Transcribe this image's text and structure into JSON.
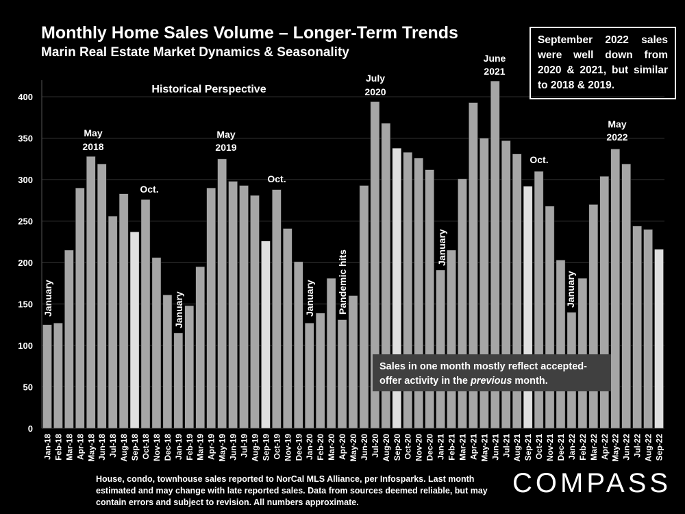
{
  "title": "Monthly Home Sales Volume – Longer-Term Trends",
  "subtitle": "Marin Real Estate Market Dynamics & Seasonality",
  "callout": "September 2022 sales were well down from 2020 & 2021, but similar to 2018 & 2019.",
  "footnote": "House, condo, townhouse sales reported to NorCal MLS Alliance, per Infosparks. Last month estimated and may change with late reported sales. Data from sources deemed reliable, but may contain errors and subject to revision. All numbers approximate.",
  "logo": "COMPASS",
  "colors": {
    "background": "#000000",
    "bar": "#a6a6a6",
    "highlight_bar": "#e0e0e0",
    "text": "#ffffff"
  },
  "chart_data": {
    "type": "bar",
    "ylim": [
      0,
      420
    ],
    "yticks": [
      0,
      50,
      100,
      150,
      200,
      250,
      300,
      350,
      400
    ],
    "grid": true,
    "categories": [
      "Jan-18",
      "Feb-18",
      "Mar-18",
      "Apr-18",
      "May-18",
      "Jun-18",
      "Jul-18",
      "Aug-18",
      "Sep-18",
      "Oct-18",
      "Nov-18",
      "Dec-18",
      "Jan-19",
      "Feb-19",
      "Mar-19",
      "Apr-19",
      "May-19",
      "Jun-19",
      "Jul-19",
      "Aug-19",
      "Sep-19",
      "Oct-19",
      "Nov-19",
      "Dec-19",
      "Jan-20",
      "Feb-20",
      "Mar-20",
      "Apr-20",
      "May-20",
      "Jun-20",
      "Jul-20",
      "Aug-20",
      "Sep-20",
      "Oct-20",
      "Nov-20",
      "Dec-20",
      "Jan-21",
      "Feb-21",
      "Mar-21",
      "Apr-21",
      "May-21",
      "Jun-21",
      "Jul-21",
      "Aug-21",
      "Sep-21",
      "Oct-21",
      "Nov-21",
      "Dec-21",
      "Jan-22",
      "Feb-22",
      "Mar-22",
      "Apr-22",
      "May-22",
      "Jun-22",
      "Jul-22",
      "Aug-22",
      "Sep-22"
    ],
    "values": [
      125,
      127,
      215,
      290,
      328,
      319,
      256,
      283,
      237,
      276,
      206,
      161,
      115,
      148,
      195,
      290,
      325,
      298,
      293,
      281,
      226,
      288,
      241,
      201,
      127,
      139,
      181,
      131,
      160,
      293,
      394,
      368,
      338,
      333,
      326,
      312,
      191,
      215,
      301,
      393,
      350,
      419,
      347,
      331,
      292,
      310,
      268,
      203,
      140,
      181,
      270,
      304,
      337,
      319,
      244,
      240,
      216
    ],
    "highlight_categories": [
      "Sep-18",
      "Sep-19",
      "Sep-20",
      "Sep-21",
      "Sep-22"
    ],
    "annotations": {
      "historical": "Historical Perspective",
      "may2018_month": "May",
      "may2018_year": "2018",
      "oct2018": "Oct.",
      "jan2018": "January",
      "jan2019": "January",
      "may2019_month": "May",
      "may2019_year": "2019",
      "oct2019": "Oct.",
      "jan2020": "January",
      "pandemic": "Pandemic hits",
      "jul2020_month": "July",
      "jul2020_year": "2020",
      "jan2021": "January",
      "jun2021_month": "June",
      "jun2021_year": "2021",
      "oct2021": "Oct.",
      "jan2022": "January",
      "may2022_month": "May",
      "may2022_year": "2022"
    },
    "note_line1": "Sales in one month mostly reflect accepted-",
    "note_line2_pre": "offer activity in the ",
    "note_line2_em": "previous",
    "note_line2_post": " month."
  }
}
